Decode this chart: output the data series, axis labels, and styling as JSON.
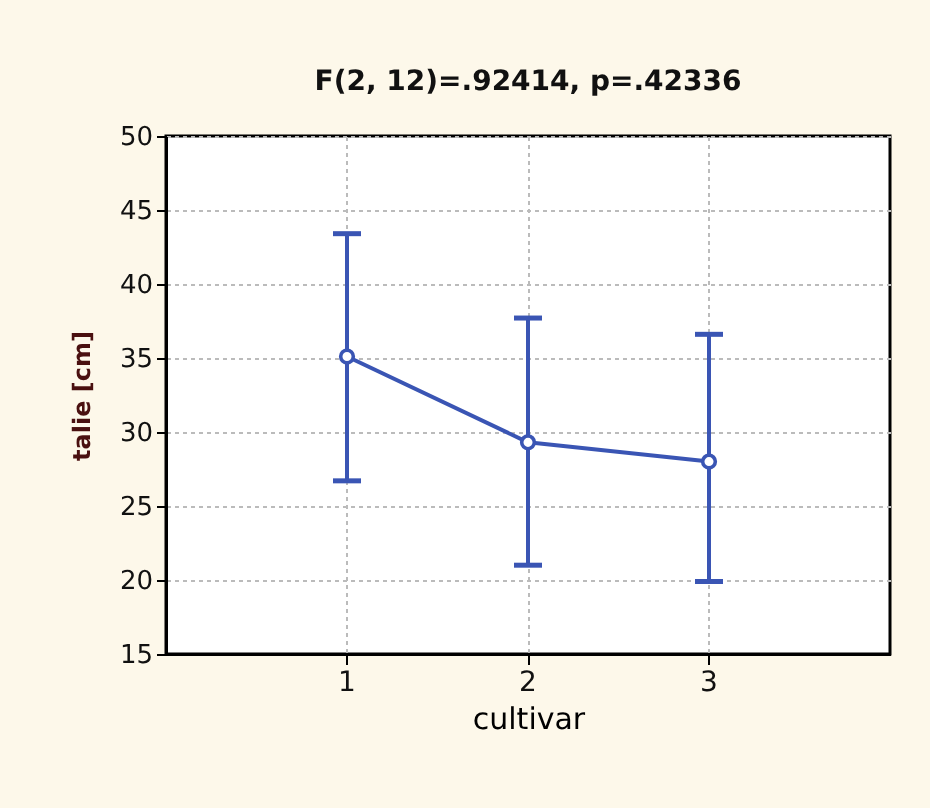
{
  "chart_data": {
    "type": "line",
    "title": "F(2, 12)=.92414, p=.42336",
    "xlabel": "cultivar",
    "ylabel": "talie [cm]",
    "categories": [
      "1",
      "2",
      "3"
    ],
    "series": [
      {
        "color": "#3a55b4",
        "values": [
          35.1,
          29.3,
          28.0
        ],
        "errors": [
          [
            26.7,
            43.4
          ],
          [
            21.0,
            37.7
          ],
          [
            19.9,
            36.6
          ]
        ]
      }
    ],
    "ylim": [
      15,
      50
    ],
    "yticks": [
      15,
      20,
      25,
      30,
      35,
      40,
      45,
      50
    ],
    "grid": true,
    "marker": "circle",
    "line_style": "solid"
  }
}
